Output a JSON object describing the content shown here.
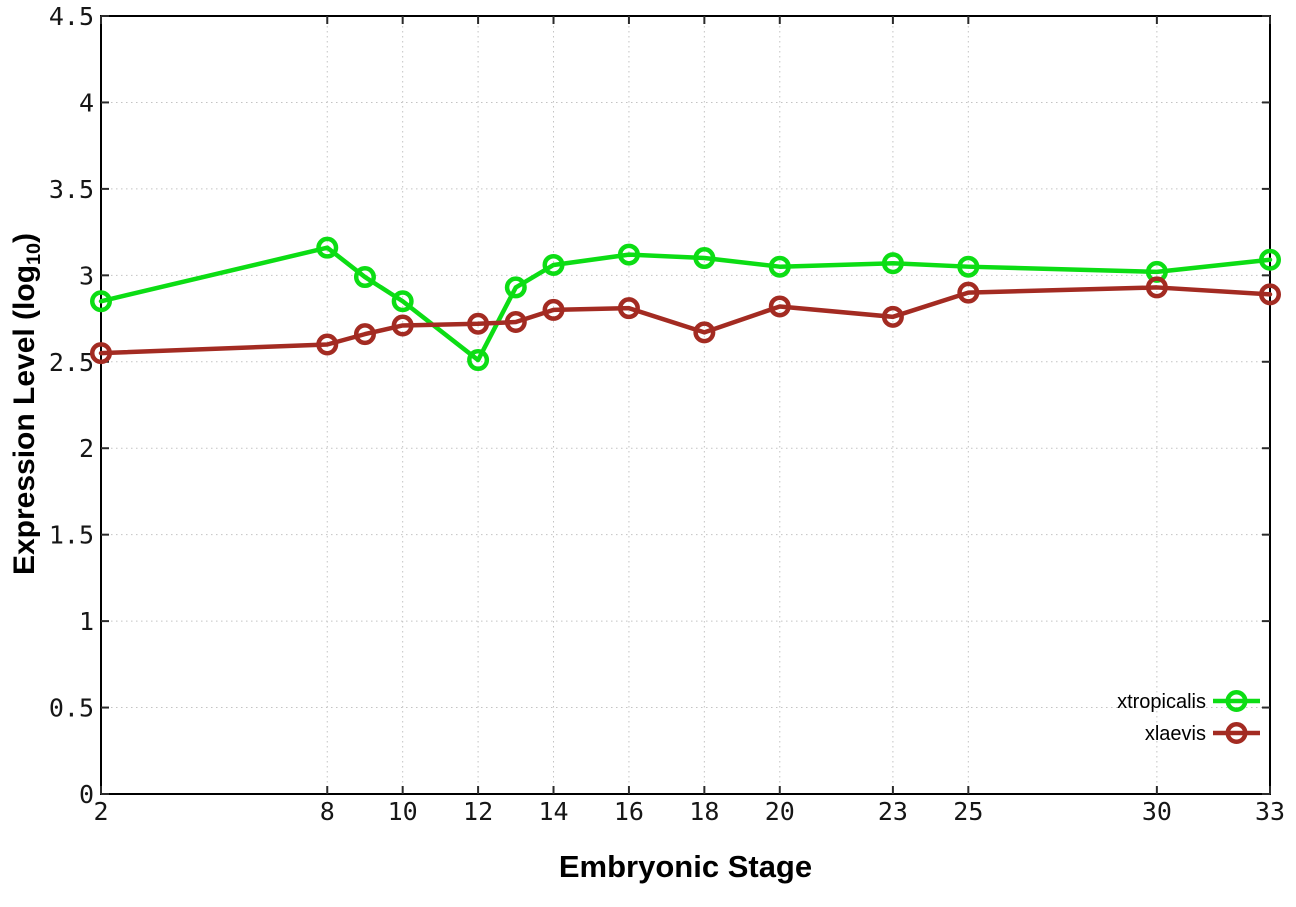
{
  "figure": {
    "xlabel": "Embryonic Stage",
    "ylabel_prefix": "Expression Level (log",
    "ylabel_sub": "10",
    "ylabel_suffix": ")",
    "background": "#ffffff"
  },
  "chart_data": {
    "type": "line",
    "title": "",
    "xlabel": "Embryonic Stage",
    "ylabel": "Expression Level (log10)",
    "x": [
      2,
      8,
      9,
      10,
      12,
      13,
      14,
      16,
      18,
      20,
      23,
      25,
      30,
      33
    ],
    "series": [
      {
        "name": "xtropicalis",
        "color": "#0cdd14",
        "marker": "open-circle",
        "values": [
          2.85,
          3.16,
          2.99,
          2.85,
          2.51,
          2.93,
          3.06,
          3.12,
          3.1,
          3.05,
          3.07,
          3.05,
          3.02,
          3.09
        ]
      },
      {
        "name": "xlaevis",
        "color": "#a32b22",
        "marker": "open-circle",
        "values": [
          2.55,
          2.6,
          2.66,
          2.71,
          2.72,
          2.73,
          2.8,
          2.81,
          2.67,
          2.82,
          2.76,
          2.9,
          2.93,
          2.89
        ]
      }
    ],
    "xlim": [
      2,
      33
    ],
    "ylim": [
      0,
      4.5
    ],
    "xticks": [
      2,
      8,
      10,
      12,
      14,
      16,
      18,
      20,
      23,
      25,
      30,
      33
    ],
    "yticks": [
      0,
      0.5,
      1,
      1.5,
      2,
      2.5,
      3,
      3.5,
      4,
      4.5
    ],
    "ytick_labels": [
      "0",
      "0.5",
      "1",
      "1.5",
      "2",
      "2.5",
      "3",
      "3.5",
      "4",
      "4.5"
    ],
    "grid": true,
    "legend_position": "inside-bottom-right",
    "axis_color": "#000000",
    "grid_color": "#c3c3c3"
  }
}
